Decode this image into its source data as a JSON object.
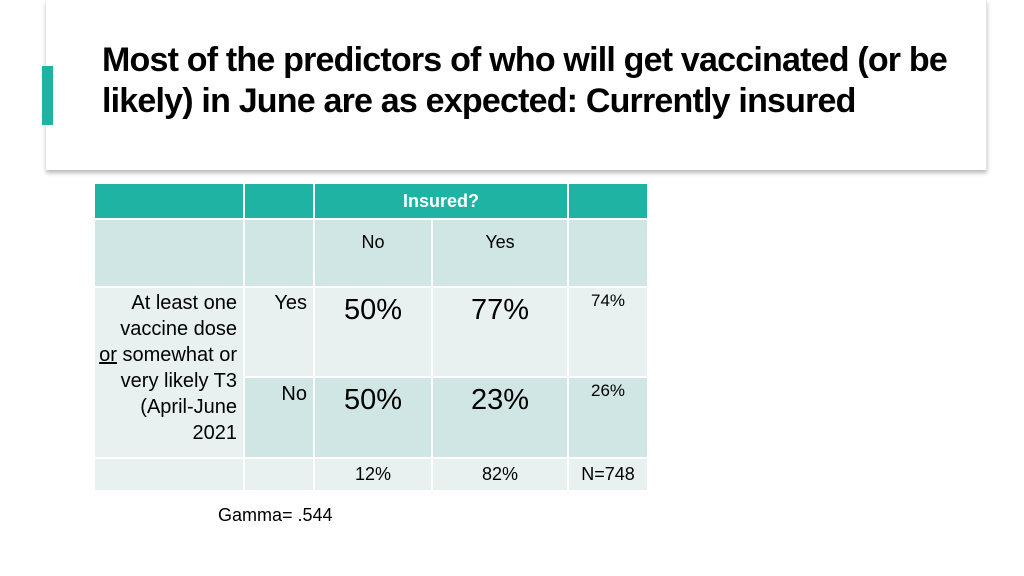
{
  "slide": {
    "title": "Most of the predictors of who will get vaccinated (or be likely) in June are as expected:  Currently insured",
    "accent_color": "#1fb3a4"
  },
  "table": {
    "header_label": "Insured?",
    "col_no": "No",
    "col_yes": "Yes",
    "row_label": {
      "line1": "At least one vaccine dose",
      "or_word": "or",
      "line2": " somewhat or very likely T3 (April-June 2021"
    },
    "rows": [
      {
        "answer": "Yes",
        "no_pct": "50%",
        "yes_pct": "77%",
        "total": "74%"
      },
      {
        "answer": "No",
        "no_pct": "50%",
        "yes_pct": "23%",
        "total": "26%"
      }
    ],
    "totals": {
      "no": "12%",
      "yes": "82%",
      "n": "N=748"
    },
    "header_color": "#1fb3a4",
    "band_dark": "#cfe6e4",
    "band_light": "#e8f1f0"
  },
  "footer": {
    "gamma": "Gamma= .544"
  }
}
